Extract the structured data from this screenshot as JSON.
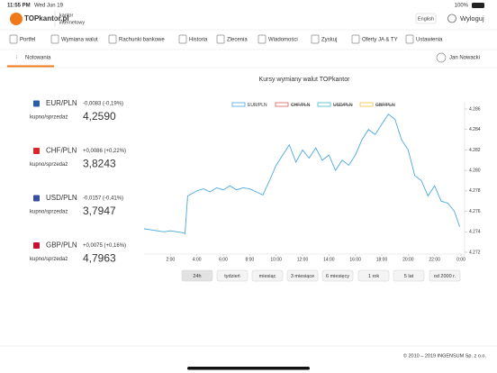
{
  "status_bar": {
    "time": "11:55 PM",
    "date": "Wed Jun 19",
    "battery": "100%"
  },
  "header": {
    "logo": "TOPkantor.pl",
    "tagline": [
      "kantor",
      "internetowy"
    ],
    "language": "English",
    "logout": "Wyloguj"
  },
  "nav": [
    "Portfel",
    "Wymiana walut",
    "Rachunki bankowe",
    "Historia",
    "Zlecenia",
    "Wiadomości",
    "Zyskuj",
    "Oferty JA & TY",
    "Ustawienia"
  ],
  "subnav": {
    "active": "Notowania",
    "user": "Jan Nowacki"
  },
  "rates": [
    {
      "pair": "EUR/PLN",
      "change": "-0,0083 (-0,19%)",
      "change_color": "#e0302a",
      "label": "kupno/sprzedaż",
      "rate": "4,2590",
      "flag_color": "#2a5ca8"
    },
    {
      "pair": "CHF/PLN",
      "change": "+0,0086 (+0,22%)",
      "change_color": "#2e9a3a",
      "label": "kupno/sprzedaż",
      "rate": "3,8243",
      "flag_color": "#d8262b"
    },
    {
      "pair": "USD/PLN",
      "change": "-0,0157 (-0,41%)",
      "change_color": "#e0302a",
      "label": "kupno/sprzedaż",
      "rate": "3,7947",
      "flag_color": "#3b4fa0"
    },
    {
      "pair": "GBP/PLN",
      "change": "+0,0075 (+0,16%)",
      "change_color": "#2e9a3a",
      "label": "kupno/sprzedaż",
      "rate": "4,7963",
      "flag_color": "#c8102e"
    }
  ],
  "chart_data": {
    "type": "line",
    "title": "Kursy wymiany walut TOPkantor",
    "x": [
      0,
      0.5,
      1,
      1.5,
      2,
      2.5,
      3,
      3.1,
      3.3,
      4,
      4.5,
      5,
      5.5,
      6,
      6.5,
      7,
      7.5,
      8,
      8.5,
      9,
      9.5,
      10,
      10.5,
      11,
      11.5,
      12,
      12.5,
      13,
      13.5,
      14,
      14.5,
      15,
      15.5,
      16,
      16.5,
      17,
      17.5,
      18,
      18.5,
      19,
      19.5,
      20,
      20.5,
      21,
      21.5,
      22,
      22.5,
      23,
      23.5,
      23.9
    ],
    "series": [
      {
        "name": "EUR/PLN",
        "color": "#4aa8e0",
        "visible": true,
        "values": [
          4.2743,
          4.2742,
          4.2741,
          4.274,
          4.2741,
          4.274,
          4.2739,
          4.2738,
          4.2775,
          4.278,
          4.2782,
          4.2779,
          4.2783,
          4.2781,
          4.2785,
          4.2781,
          4.2783,
          4.2782,
          4.2779,
          4.2776,
          4.279,
          4.2805,
          4.2815,
          4.2825,
          4.2808,
          4.282,
          4.2812,
          4.2822,
          4.281,
          4.2815,
          4.28,
          4.281,
          4.2805,
          4.2815,
          4.283,
          4.284,
          4.2835,
          4.2845,
          4.2855,
          4.285,
          4.283,
          4.282,
          4.2795,
          4.279,
          4.2775,
          4.2785,
          4.277,
          4.2768,
          4.276,
          4.2745
        ]
      },
      {
        "name": "CHF/PLN",
        "color": "#e05a5a",
        "visible": false
      },
      {
        "name": "USD/PLN",
        "color": "#3cc0c0",
        "visible": false
      },
      {
        "name": "GBP/PLN",
        "color": "#f0c040",
        "visible": false
      }
    ],
    "xlim": [
      0,
      24
    ],
    "xticks": [
      {
        "value": 2,
        "label": "2:00"
      },
      {
        "value": 4,
        "label": "4:00"
      },
      {
        "value": 6,
        "label": "6:00"
      },
      {
        "value": 8,
        "label": "8:00"
      },
      {
        "value": 10,
        "label": "10:00"
      },
      {
        "value": 12,
        "label": "12:00"
      },
      {
        "value": 14,
        "label": "14:00"
      },
      {
        "value": 16,
        "label": "16:00"
      },
      {
        "value": 18,
        "label": "18:00"
      },
      {
        "value": 20,
        "label": "20:00"
      },
      {
        "value": 22,
        "label": "22:00"
      },
      {
        "value": 24,
        "label": "0:00"
      }
    ],
    "ylim": [
      4.272,
      4.286
    ],
    "yticks": [
      4.272,
      4.274,
      4.276,
      4.278,
      {
        "value": 4.28,
        "label": "4.280"
      },
      4.282,
      4.284,
      4.286
    ]
  },
  "ranges": {
    "buttons": [
      "24h",
      "tydzień",
      "miesiąc",
      "3 miesiące",
      "6 miesięcy",
      "1 rok",
      "5 lat",
      "od 2000 r."
    ],
    "active": 0
  },
  "footer": "© 2010 – 2019 INGENSUM Sp. z o.o."
}
